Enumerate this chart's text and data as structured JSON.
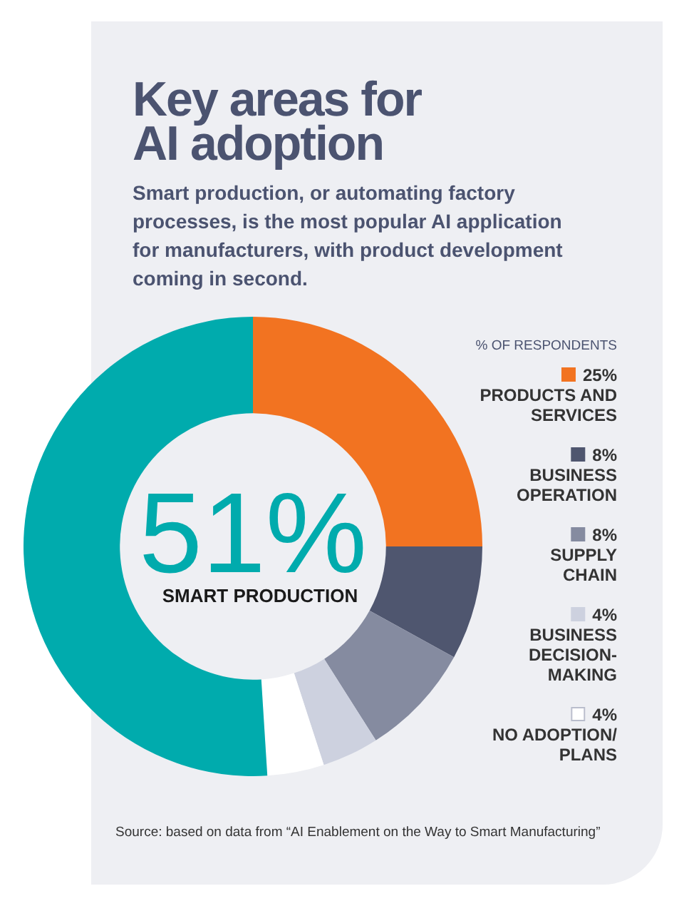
{
  "chart_data": {
    "type": "donut",
    "title": "Key areas for AI adoption",
    "subtitle": "Smart production, or automating factory processes, is the most popular AI application for manufacturers, with product development coming in second.",
    "categories": [
      "PRODUCTS AND SERVICES",
      "BUSINESS OPERATION",
      "SUPPLY CHAIN",
      "BUSINESS DECISION-MAKING",
      "NO ADOPTION/PLANS",
      "SMART PRODUCTION"
    ],
    "values": [
      25,
      8,
      8,
      4,
      4,
      51
    ],
    "value_labels": [
      "25%",
      "8%",
      "8%",
      "4%",
      "4%",
      "51%"
    ],
    "colors": [
      "#f27321",
      "#4f566f",
      "#858ba0",
      "#cdd1df",
      "#ffffff",
      "#00abad"
    ],
    "legend": "right",
    "legend_title": "% OF RESPONDENTS",
    "annotations": [
      "Source: based on data from “AI Enablement on the Way to Smart Manufacturing”"
    ]
  }
}
